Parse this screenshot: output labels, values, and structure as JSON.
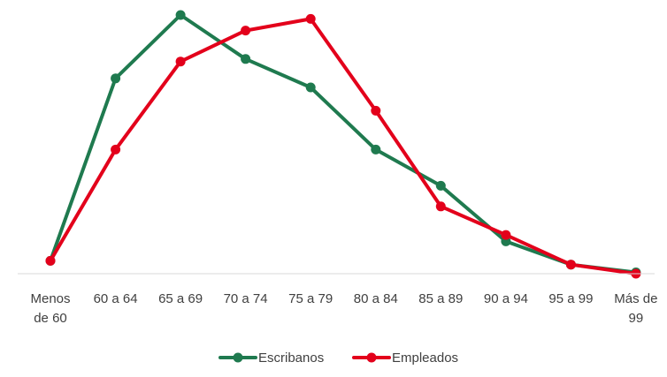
{
  "chart_data": {
    "type": "line",
    "categories": [
      [
        "Menos",
        "de 60"
      ],
      [
        "60 a 64"
      ],
      [
        "65 a 69"
      ],
      [
        "70 a 74"
      ],
      [
        "75 a 79"
      ],
      [
        "80 a 84"
      ],
      [
        "85 a 89"
      ],
      [
        "90 a 94"
      ],
      [
        "95 a 99"
      ],
      [
        "Más de",
        "99"
      ]
    ],
    "series": [
      {
        "name": "Escribanos",
        "color": "#1f7a4f",
        "values": [
          5.0,
          75.5,
          100.0,
          83.0,
          72.0,
          48.0,
          34.0,
          12.5,
          3.5,
          0.5
        ]
      },
      {
        "name": "Empleados",
        "color": "#e3001b",
        "values": [
          5.0,
          48.0,
          82.0,
          94.0,
          98.5,
          63.0,
          26.0,
          15.0,
          3.5,
          0.0
        ]
      }
    ],
    "ylim": [
      0,
      100
    ],
    "grid": false,
    "legend_position": "bottom"
  }
}
